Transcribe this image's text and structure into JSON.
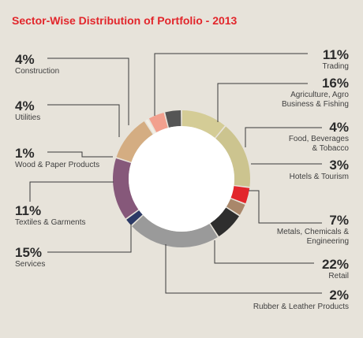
{
  "title": "Sector-Wise Distribution of Portfolio - 2013",
  "chart_data": {
    "type": "pie",
    "style": "donut",
    "title": "Sector-Wise Distribution of Portfolio - 2013",
    "unit": "%",
    "slices": [
      {
        "label": "Trading",
        "label_lines": [
          "Trading"
        ],
        "value": 11,
        "display": "11%",
        "color": "#d4cc96"
      },
      {
        "label": "Agriculture, Agro Business & Fishing",
        "label_lines": [
          "Agriculture, Agro",
          "Business & Fishing"
        ],
        "value": 16,
        "display": "16%",
        "color": "#ccc48f"
      },
      {
        "label": "Food, Beverages & Tobacco",
        "label_lines": [
          "Food, Beverages",
          "& Tobacco"
        ],
        "value": 4,
        "display": "4%",
        "color": "#e2262b"
      },
      {
        "label": "Hotels & Tourism",
        "label_lines": [
          "Hotels & Tourism"
        ],
        "value": 3,
        "display": "3%",
        "color": "#a9876a"
      },
      {
        "label": "Metals, Chemicals & Engineering",
        "label_lines": [
          "Metals, Chemicals &",
          "Engineering"
        ],
        "value": 7,
        "display": "7%",
        "color": "#2e2e2e"
      },
      {
        "label": "Retail",
        "label_lines": [
          "Retail"
        ],
        "value": 22,
        "display": "22%",
        "color": "#9a9a9a"
      },
      {
        "label": "Rubber & Leather Products",
        "label_lines": [
          "Rubber & Leather Products"
        ],
        "value": 2,
        "display": "2%",
        "color": "#2c3a66"
      },
      {
        "label": "Services",
        "label_lines": [
          "Services"
        ],
        "value": 15,
        "display": "15%",
        "color": "#86587a"
      },
      {
        "label": "Textiles & Garments",
        "label_lines": [
          "Textiles & Garments"
        ],
        "value": 11,
        "display": "11%",
        "color": "#d4ad82"
      },
      {
        "label": "Wood & Paper Products",
        "label_lines": [
          "Wood & Paper Products"
        ],
        "value": 1,
        "display": "1%",
        "color": "#f2eee4"
      },
      {
        "label": "Utilities",
        "label_lines": [
          "Utilities"
        ],
        "value": 4,
        "display": "4%",
        "color": "#f2a08e"
      },
      {
        "label": "Construction",
        "label_lines": [
          "Construction"
        ],
        "value": 4,
        "display": "4%",
        "color": "#555555"
      }
    ],
    "center_color": "#ffffff",
    "background": "#e7e3da",
    "title_color": "#e2262b",
    "leader_color": "#3a3a3a"
  }
}
